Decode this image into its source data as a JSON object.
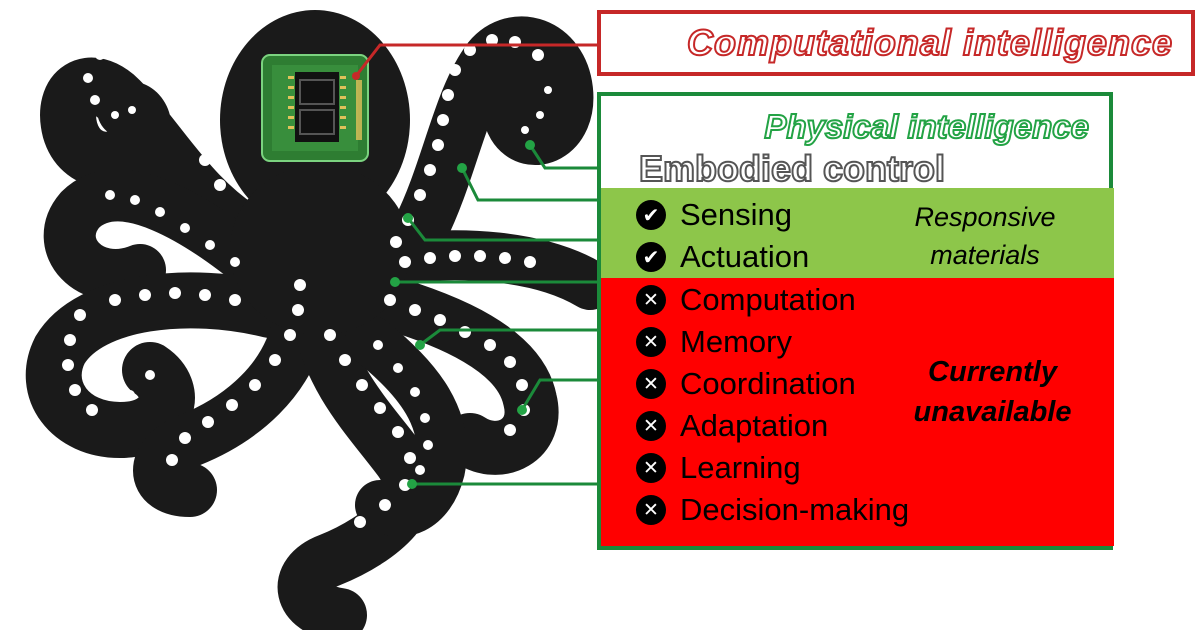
{
  "diagram": {
    "computational_title": "Computational intelligence",
    "physical_title": "Physical intelligence",
    "embodied_title": "Embodied control",
    "green_group_label": "Responsive materials",
    "red_group_label": "Currently unavailable",
    "available": [
      {
        "label": "Sensing",
        "icon": "check-icon"
      },
      {
        "label": "Actuation",
        "icon": "check-icon"
      }
    ],
    "unavailable": [
      {
        "label": "Computation",
        "icon": "cross-icon"
      },
      {
        "label": "Memory",
        "icon": "cross-icon"
      },
      {
        "label": "Coordination",
        "icon": "cross-icon"
      },
      {
        "label": "Adaptation",
        "icon": "cross-icon"
      },
      {
        "label": "Learning",
        "icon": "cross-icon"
      },
      {
        "label": "Decision-making",
        "icon": "cross-icon"
      }
    ],
    "colors": {
      "computational_red": "#c62828",
      "physical_green": "#23a345",
      "available_band": "#8dc64a",
      "unavailable_band": "#ff0000",
      "chip_green": "#2e7d32"
    }
  }
}
